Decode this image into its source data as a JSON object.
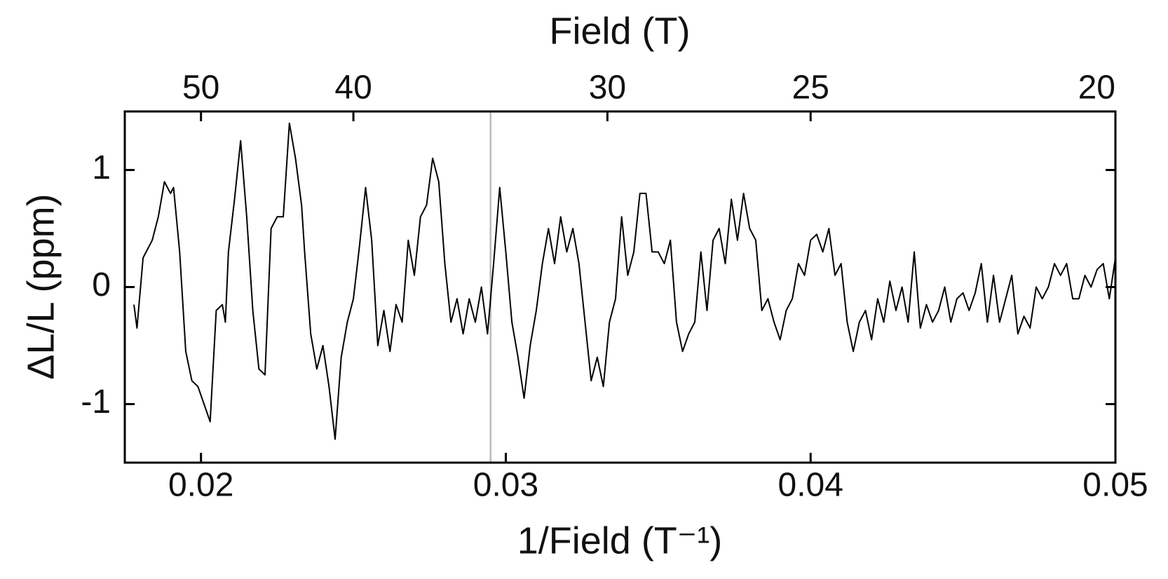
{
  "chart_data": {
    "type": "line",
    "xlabel": "1/Field (T⁻¹)",
    "ylabel": "ΔL/L (ppm)",
    "x2label": "Field (T)",
    "xlim": [
      0.0175,
      0.05
    ],
    "xticks": [
      0.02,
      0.03,
      0.04,
      0.05
    ],
    "ylim": [
      -1.5,
      1.5
    ],
    "yticks": [
      -1,
      0,
      1
    ],
    "x2ticks": [
      50,
      40,
      30,
      25,
      20
    ],
    "x2scale": "reciprocal",
    "color": "#000000",
    "vline": {
      "x": 0.0295,
      "color": "#bbbbbb"
    },
    "x": [
      0.0178,
      0.0179,
      0.0181,
      0.0184,
      0.0186,
      0.0188,
      0.019,
      0.0191,
      0.0193,
      0.0195,
      0.0197,
      0.0199,
      0.0201,
      0.0203,
      0.0205,
      0.0207,
      0.0208,
      0.0209,
      0.0211,
      0.0213,
      0.0215,
      0.0217,
      0.0219,
      0.0221,
      0.0223,
      0.0225,
      0.0227,
      0.0229,
      0.0231,
      0.0233,
      0.0234,
      0.0236,
      0.0238,
      0.024,
      0.0242,
      0.0244,
      0.0246,
      0.0248,
      0.025,
      0.0252,
      0.0254,
      0.0256,
      0.0258,
      0.026,
      0.0262,
      0.0264,
      0.0266,
      0.0268,
      0.027,
      0.0272,
      0.0274,
      0.0276,
      0.0278,
      0.028,
      0.0282,
      0.0284,
      0.0286,
      0.0288,
      0.029,
      0.0292,
      0.0294,
      0.0296,
      0.0298,
      0.03,
      0.0302,
      0.0304,
      0.0306,
      0.0308,
      0.031,
      0.0312,
      0.0314,
      0.0316,
      0.0318,
      0.032,
      0.0322,
      0.0324,
      0.0326,
      0.0328,
      0.033,
      0.0332,
      0.0334,
      0.0336,
      0.0338,
      0.034,
      0.0342,
      0.0344,
      0.0346,
      0.0348,
      0.035,
      0.0352,
      0.0354,
      0.0356,
      0.0358,
      0.036,
      0.0362,
      0.0364,
      0.0366,
      0.0368,
      0.037,
      0.0372,
      0.0374,
      0.0376,
      0.0378,
      0.038,
      0.0382,
      0.0384,
      0.0386,
      0.0388,
      0.039,
      0.0392,
      0.0394,
      0.0396,
      0.0398,
      0.04,
      0.0402,
      0.0404,
      0.0406,
      0.0408,
      0.041,
      0.0412,
      0.0414,
      0.0416,
      0.0418,
      0.042,
      0.0422,
      0.0424,
      0.0426,
      0.0428,
      0.043,
      0.0432,
      0.0434,
      0.0436,
      0.0438,
      0.044,
      0.0442,
      0.0444,
      0.0446,
      0.0448,
      0.045,
      0.0452,
      0.0454,
      0.0456,
      0.0458,
      0.046,
      0.0462,
      0.0464,
      0.0466,
      0.0468,
      0.047,
      0.0472,
      0.0474,
      0.0476,
      0.0478,
      0.048,
      0.0482,
      0.0484,
      0.0486,
      0.0488,
      0.049,
      0.0492,
      0.0494,
      0.0496,
      0.0498,
      0.05
    ],
    "values": [
      -0.15,
      -0.35,
      0.25,
      0.4,
      0.6,
      0.9,
      0.8,
      0.85,
      0.3,
      -0.55,
      -0.8,
      -0.85,
      -1.0,
      -1.15,
      -0.2,
      -0.15,
      -0.3,
      0.3,
      0.75,
      1.25,
      0.6,
      -0.2,
      -0.7,
      -0.75,
      0.5,
      0.6,
      0.6,
      1.4,
      1.1,
      0.7,
      0.3,
      -0.4,
      -0.7,
      -0.5,
      -0.85,
      -1.3,
      -0.6,
      -0.3,
      -0.1,
      0.35,
      0.85,
      0.4,
      -0.5,
      -0.2,
      -0.55,
      -0.15,
      -0.3,
      0.4,
      0.1,
      0.6,
      0.7,
      1.1,
      0.9,
      0.2,
      -0.3,
      -0.1,
      -0.4,
      -0.1,
      -0.3,
      0.0,
      -0.4,
      0.2,
      0.85,
      0.3,
      -0.3,
      -0.6,
      -0.95,
      -0.5,
      -0.2,
      0.2,
      0.5,
      0.2,
      0.6,
      0.3,
      0.5,
      0.2,
      -0.3,
      -0.8,
      -0.6,
      -0.85,
      -0.3,
      -0.1,
      0.6,
      0.1,
      0.3,
      0.8,
      0.8,
      0.3,
      0.3,
      0.2,
      0.4,
      -0.3,
      -0.55,
      -0.4,
      -0.3,
      0.3,
      -0.2,
      0.4,
      0.5,
      0.2,
      0.75,
      0.4,
      0.8,
      0.5,
      0.4,
      -0.2,
      -0.1,
      -0.3,
      -0.45,
      -0.2,
      -0.1,
      0.2,
      0.1,
      0.4,
      0.45,
      0.3,
      0.5,
      0.1,
      0.2,
      -0.3,
      -0.55,
      -0.3,
      -0.2,
      -0.45,
      -0.1,
      -0.3,
      0.05,
      -0.2,
      0.0,
      -0.3,
      0.3,
      -0.35,
      -0.15,
      -0.3,
      -0.2,
      0.0,
      -0.3,
      -0.1,
      -0.05,
      -0.2,
      -0.05,
      0.2,
      -0.3,
      0.1,
      -0.3,
      -0.1,
      0.1,
      -0.4,
      -0.25,
      -0.35,
      0.0,
      -0.1,
      0.0,
      0.2,
      0.1,
      0.2,
      -0.1,
      -0.1,
      0.1,
      0.0,
      0.15,
      0.2,
      -0.1,
      0.25
    ]
  }
}
